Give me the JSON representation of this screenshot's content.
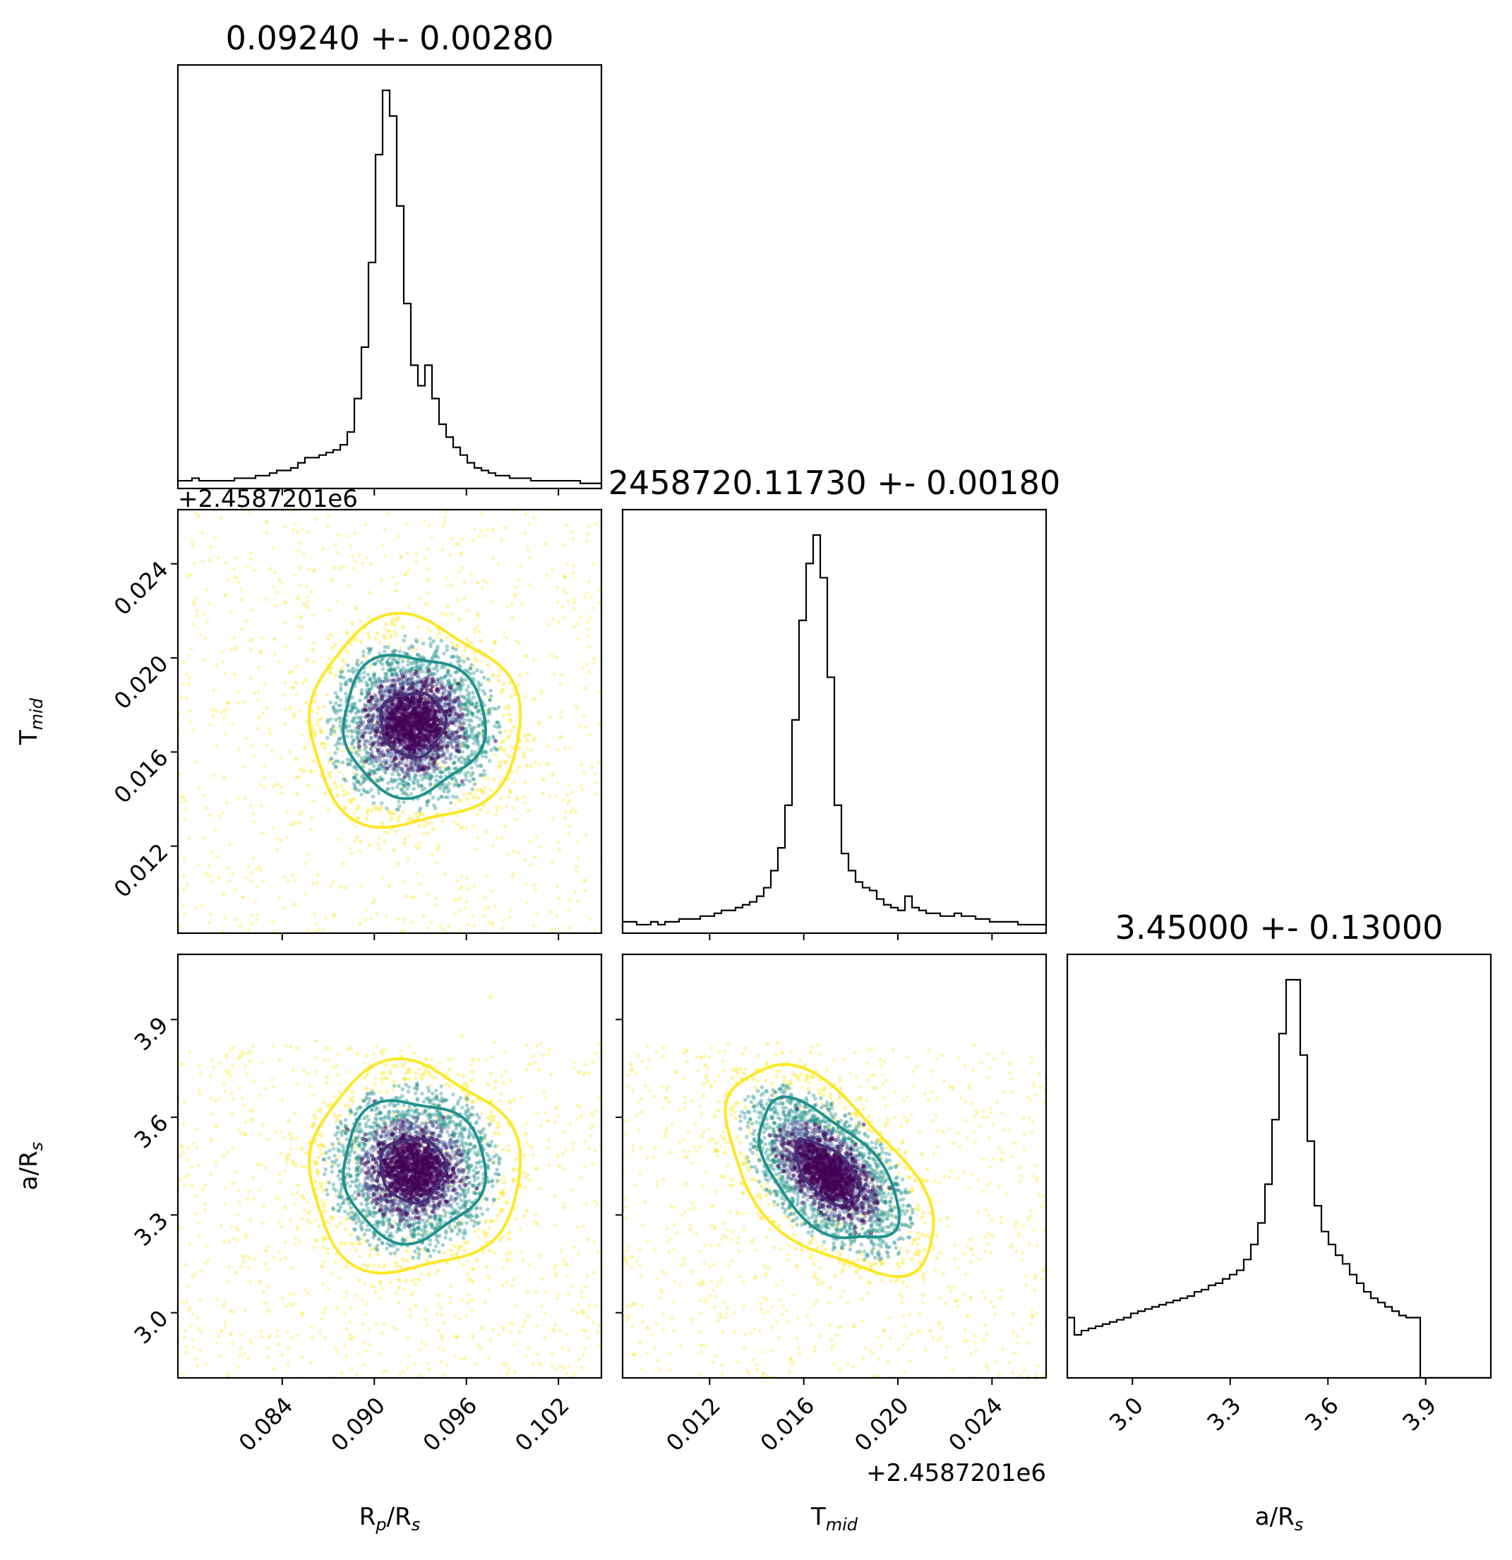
{
  "chart_data": {
    "type": "corner",
    "parameters": [
      {
        "key": "rp",
        "label_main": "R",
        "label_sub1": "p",
        "label_mid": "/R",
        "label_sub2": "s",
        "range": [
          0.0772,
          0.1048
        ],
        "ticks": [
          "0.084",
          "0.090",
          "0.096",
          "0.102"
        ],
        "tick_values": [
          0.084,
          0.09,
          0.096,
          0.102
        ],
        "offset_text": ""
      },
      {
        "key": "tmid",
        "label_main": "T",
        "label_sub1": "mid",
        "label_mid": "",
        "label_sub2": "",
        "range": [
          0.0083,
          0.0263
        ],
        "ticks": [
          "0.012",
          "0.016",
          "0.020",
          "0.024"
        ],
        "tick_values": [
          0.012,
          0.016,
          0.02,
          0.024
        ],
        "offset_text": "+2.4587201e6"
      },
      {
        "key": "ars",
        "label_main": "a/R",
        "label_sub1": "",
        "label_mid": "",
        "label_sub2": "s",
        "range": [
          2.8,
          4.1
        ],
        "ticks": [
          "3.0",
          "3.3",
          "3.6",
          "3.9"
        ],
        "tick_values": [
          3.0,
          3.3,
          3.6,
          3.9
        ],
        "offset_text": ""
      }
    ],
    "titles": [
      "0.09240 +- 0.00280",
      "2458720.11730 +- 0.00180",
      "3.45000 +- 0.13000"
    ],
    "histograms": [
      {
        "param": "rp",
        "bins": 60,
        "edges_range": [
          0.0772,
          0.1048
        ],
        "counts": [
          3,
          3,
          4,
          3,
          3,
          3,
          3,
          3,
          4,
          4,
          4,
          5,
          5,
          6,
          7,
          7,
          8,
          10,
          12,
          12,
          13,
          14,
          15,
          17,
          22,
          35,
          55,
          88,
          130,
          155,
          145,
          110,
          72,
          48,
          40,
          48,
          35,
          25,
          20,
          16,
          13,
          10,
          8,
          7,
          6,
          5,
          5,
          4,
          4,
          4,
          3,
          3,
          3,
          3,
          3,
          3,
          3,
          2,
          2,
          2
        ]
      },
      {
        "param": "tmid",
        "bins": 60,
        "edges_range": [
          0.0083,
          0.0263
        ],
        "counts": [
          4,
          4,
          3,
          3,
          4,
          3,
          4,
          4,
          5,
          5,
          5,
          6,
          6,
          7,
          8,
          8,
          9,
          10,
          11,
          13,
          16,
          22,
          30,
          45,
          75,
          110,
          130,
          140,
          125,
          90,
          45,
          28,
          22,
          18,
          16,
          15,
          12,
          10,
          9,
          8,
          13,
          9,
          8,
          7,
          7,
          6,
          6,
          7,
          6,
          6,
          5,
          5,
          4,
          4,
          4,
          4,
          3,
          3,
          3,
          3
        ]
      },
      {
        "param": "ars",
        "bins": 60,
        "edges_range": [
          2.8,
          4.1
        ],
        "counts": [
          28,
          20,
          22,
          23,
          24,
          25,
          26,
          27,
          28,
          30,
          31,
          32,
          33,
          34,
          35,
          36,
          37,
          38,
          40,
          41,
          43,
          44,
          46,
          48,
          50,
          55,
          62,
          72,
          90,
          120,
          160,
          185,
          185,
          150,
          110,
          80,
          68,
          62,
          57,
          53,
          48,
          44,
          40,
          37,
          35,
          33,
          31,
          29,
          28,
          28,
          0,
          0,
          0,
          0,
          0,
          0,
          0,
          0,
          0,
          0
        ]
      }
    ],
    "scatter_pairs": [
      {
        "x": "rp",
        "y": "tmid",
        "center": [
          0.0925,
          0.0172
        ],
        "sigma": [
          0.0028,
          0.0018
        ],
        "correlation": 0.0
      },
      {
        "x": "rp",
        "y": "ars",
        "center": [
          0.0925,
          3.44
        ],
        "sigma": [
          0.0028,
          0.13
        ],
        "correlation": 0.0
      },
      {
        "x": "tmid",
        "y": "ars",
        "center": [
          0.017,
          3.43
        ],
        "sigma": [
          0.0018,
          0.13
        ],
        "correlation": -0.55
      }
    ],
    "contour_levels": [
      "1-sigma",
      "2-sigma",
      "3-sigma"
    ],
    "colors": {
      "inner": "#472d7b",
      "middle": "#21918c",
      "outer": "#fde725",
      "hist": "#000000"
    }
  }
}
